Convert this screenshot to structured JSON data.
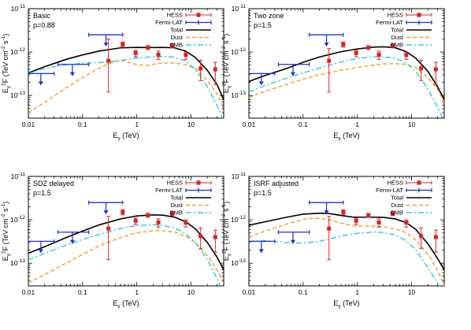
{
  "chart_data": [
    {
      "type": "line",
      "title": "",
      "panel_label": "Basic",
      "param": "p=0.88",
      "xlabel": {
        "base": "E",
        "sub": "γ",
        "rest": " (TeV)"
      },
      "ylabel": {
        "base": "E",
        "sub": "γ",
        "sup": "2",
        "rest1": "F (TeV cm",
        "sup2": "-2",
        "rest2": " s",
        "sup3": "-1",
        "rest3": ")"
      },
      "xscale": "log",
      "yscale": "log",
      "xlim": [
        0.01,
        40
      ],
      "ylim": [
        3e-14,
        1e-11
      ],
      "x_ticks": [
        0.01,
        0.1,
        1,
        10
      ],
      "x_tick_labels": [
        "0.01",
        "0.1",
        "1",
        "10"
      ],
      "y_ticks": [
        1e-13,
        1e-12,
        1e-11
      ],
      "y_tick_labels": [
        {
          "base": "10",
          "exp": "-13"
        },
        {
          "base": "10",
          "exp": "-12"
        },
        {
          "base": "10",
          "exp": "-11"
        }
      ],
      "legend_position": "top-right",
      "legend": [
        "HESS",
        "Fermi-LAT",
        "Total",
        "Dust",
        "CMB"
      ],
      "series": [
        {
          "name": "Total",
          "color": "#000000",
          "style": "solid",
          "x": [
            0.01,
            0.02,
            0.05,
            0.1,
            0.2,
            0.5,
            1,
            2,
            3,
            5,
            8,
            12,
            20,
            30,
            40
          ],
          "y": [
            3.3e-13,
            4.6e-13,
            6.8e-13,
            8.6e-13,
            1.05e-12,
            1.25e-12,
            1.28e-12,
            1.27e-12,
            1.28e-12,
            1.25e-12,
            1.05e-12,
            7.5e-13,
            3.8e-13,
            1.8e-13,
            8e-14
          ]
        },
        {
          "name": "Dust",
          "color": "#f0a020",
          "style": "dashed",
          "x": [
            0.01,
            0.02,
            0.05,
            0.1,
            0.2,
            0.3,
            0.5,
            0.8,
            1,
            1.5,
            2,
            3,
            5,
            8,
            12,
            20,
            30,
            40
          ],
          "y": [
            4e-14,
            7e-14,
            1.5e-13,
            2.6e-13,
            4.2e-13,
            5.4e-13,
            6.5e-13,
            5.6e-13,
            5.1e-13,
            4.9e-13,
            5.2e-13,
            5.6e-13,
            5.6e-13,
            5.1e-13,
            4.2e-13,
            2.2e-13,
            1.1e-13,
            5e-14
          ]
        },
        {
          "name": "CMB",
          "color": "#22cde0",
          "style": "dashdot",
          "x": [
            0.01,
            0.02,
            0.05,
            0.1,
            0.2,
            0.5,
            1,
            2,
            3,
            5,
            8,
            12,
            20,
            30,
            40
          ],
          "y": [
            3.2e-13,
            4.2e-13,
            5.1e-13,
            5.5e-13,
            5.7e-13,
            6.4e-13,
            7.3e-13,
            7.8e-13,
            7.9e-13,
            7.6e-13,
            6.2e-13,
            4e-13,
            1.6e-13,
            6e-14,
            2.5e-14
          ]
        }
      ],
      "hess_points": [
        {
          "x": 0.3,
          "y": 6.3e-13,
          "ylo": 1.2e-13,
          "yhi": 2e-12
        },
        {
          "x": 0.55,
          "y": 1.5e-12,
          "ylo": 1.3e-12,
          "yhi": 1.7e-12
        },
        {
          "x": 0.95,
          "y": 9.5e-13,
          "ylo": 7.8e-13,
          "yhi": 1.1e-12
        },
        {
          "x": 1.6,
          "y": 1.28e-12,
          "ylo": 1.15e-12,
          "yhi": 1.4e-12
        },
        {
          "x": 2.5,
          "y": 8.7e-13,
          "ylo": 6.8e-13,
          "yhi": 1.05e-12
        },
        {
          "x": 4.5,
          "y": 1.4e-12,
          "ylo": 1.25e-12,
          "yhi": 1.55e-12
        },
        {
          "x": 8,
          "y": 8.6e-13,
          "ylo": 6.8e-13,
          "yhi": 1e-12
        },
        {
          "x": 15,
          "y": 4.2e-13,
          "ylo": 2.2e-13,
          "yhi": 6.5e-13
        },
        {
          "x": 28,
          "y": 4e-13,
          "ylo": 1.8e-13,
          "yhi": 5.8e-13
        }
      ],
      "fermi_points": [
        {
          "x": 0.017,
          "xlo": 0.01,
          "xhi": 0.03,
          "y": 3.2e-13,
          "ul": true
        },
        {
          "x": 0.065,
          "xlo": 0.035,
          "xhi": 0.13,
          "y": 5.2e-13,
          "ul": true
        },
        {
          "x": 0.27,
          "xlo": 0.13,
          "xhi": 0.55,
          "y": 2.5e-12,
          "ul": true
        }
      ]
    },
    {
      "type": "line",
      "title": "",
      "panel_label": "Two zone",
      "param": "p=1.5",
      "xlabel": {
        "base": "E",
        "sub": "γ",
        "rest": " (TeV)"
      },
      "ylabel": {
        "base": "E",
        "sub": "γ",
        "sup": "2",
        "rest1": "F (TeV cm",
        "sup2": "-2",
        "rest2": " s",
        "sup3": "-1",
        "rest3": ")"
      },
      "xscale": "log",
      "yscale": "log",
      "xlim": [
        0.01,
        40
      ],
      "ylim": [
        3e-14,
        1e-11
      ],
      "x_ticks": [
        0.01,
        0.1,
        1,
        10
      ],
      "x_tick_labels": [
        "0.01",
        "0.1",
        "1",
        "10"
      ],
      "y_ticks": [
        1e-13,
        1e-12,
        1e-11
      ],
      "y_tick_labels": [
        {
          "base": "10",
          "exp": "-13"
        },
        {
          "base": "10",
          "exp": "-12"
        },
        {
          "base": "10",
          "exp": "-11"
        }
      ],
      "legend_position": "top-right",
      "legend": [
        "HESS",
        "Fermi-LAT",
        "Total",
        "Dust",
        "CMB"
      ],
      "series": [
        {
          "name": "Total",
          "color": "#000000",
          "style": "solid",
          "x": [
            0.01,
            0.02,
            0.05,
            0.1,
            0.2,
            0.5,
            1,
            2,
            3,
            5,
            8,
            12,
            20,
            30,
            40
          ],
          "y": [
            2.1e-13,
            2.9e-13,
            4.2e-13,
            5.8e-13,
            7.7e-13,
            1.02e-12,
            1.18e-12,
            1.3e-12,
            1.32e-12,
            1.26e-12,
            1.02e-12,
            7.2e-13,
            3.6e-13,
            1.6e-13,
            8e-14
          ]
        },
        {
          "name": "Dust",
          "color": "#f0a020",
          "style": "dashed",
          "x": [
            0.01,
            0.02,
            0.05,
            0.1,
            0.2,
            0.5,
            1,
            2,
            3,
            5,
            8,
            12,
            20,
            30,
            40
          ],
          "y": [
            9e-14,
            1.25e-13,
            1.8e-13,
            2.4e-13,
            3e-13,
            3.8e-13,
            4.4e-13,
            5e-13,
            5.3e-13,
            5.4e-13,
            5.2e-13,
            4.4e-13,
            2.6e-13,
            1.4e-13,
            7e-14
          ]
        },
        {
          "name": "CMB",
          "color": "#22cde0",
          "style": "dashdot",
          "x": [
            0.01,
            0.02,
            0.05,
            0.1,
            0.2,
            0.5,
            1,
            2,
            3,
            5,
            8,
            12,
            20,
            30,
            40
          ],
          "y": [
            1.2e-13,
            1.7e-13,
            2.5e-13,
            3.3e-13,
            4.3e-13,
            5.9e-13,
            7.1e-13,
            7.8e-13,
            7.8e-13,
            7.2e-13,
            5.6e-13,
            3.6e-13,
            1.4e-13,
            5.5e-14,
            2.5e-14
          ]
        }
      ],
      "hess_points": [
        {
          "x": 0.3,
          "y": 6.3e-13,
          "ylo": 1.2e-13,
          "yhi": 1.2e-12
        },
        {
          "x": 0.55,
          "y": 1.5e-12,
          "ylo": 1.3e-12,
          "yhi": 1.7e-12
        },
        {
          "x": 0.95,
          "y": 9.5e-13,
          "ylo": 7.8e-13,
          "yhi": 1.1e-12
        },
        {
          "x": 1.6,
          "y": 1.28e-12,
          "ylo": 1.15e-12,
          "yhi": 1.4e-12
        },
        {
          "x": 2.5,
          "y": 8.7e-13,
          "ylo": 6.8e-13,
          "yhi": 1.05e-12
        },
        {
          "x": 4.5,
          "y": 1.4e-12,
          "ylo": 1.25e-12,
          "yhi": 1.55e-12
        },
        {
          "x": 8,
          "y": 8.6e-13,
          "ylo": 6.8e-13,
          "yhi": 1e-12
        },
        {
          "x": 15,
          "y": 4.2e-13,
          "ylo": 2.2e-13,
          "yhi": 6.5e-13
        },
        {
          "x": 28,
          "y": 4e-13,
          "ylo": 1.8e-13,
          "yhi": 5.8e-13
        }
      ],
      "fermi_points": [
        {
          "x": 0.017,
          "xlo": 0.01,
          "xhi": 0.03,
          "y": 3.2e-13,
          "ul": true
        },
        {
          "x": 0.065,
          "xlo": 0.035,
          "xhi": 0.13,
          "y": 5.2e-13,
          "ul": true
        },
        {
          "x": 0.27,
          "xlo": 0.13,
          "xhi": 0.55,
          "y": 2.5e-12,
          "ul": true
        }
      ]
    },
    {
      "type": "line",
      "title": "",
      "panel_label": "SDZ delayed",
      "param": "p=1.5",
      "xlabel": {
        "base": "E",
        "sub": "γ",
        "rest": " (TeV)"
      },
      "ylabel": {
        "base": "E",
        "sub": "γ",
        "sup": "2",
        "rest1": "F (TeV cm",
        "sup2": "-2",
        "rest2": " s",
        "sup3": "-1",
        "rest3": ")"
      },
      "xscale": "log",
      "yscale": "log",
      "xlim": [
        0.01,
        40
      ],
      "ylim": [
        3e-14,
        1e-11
      ],
      "x_ticks": [
        0.01,
        0.1,
        1,
        10
      ],
      "x_tick_labels": [
        "0.01",
        "0.1",
        "1",
        "10"
      ],
      "y_ticks": [
        1e-13,
        1e-12,
        1e-11
      ],
      "y_tick_labels": [
        {
          "base": "10",
          "exp": "-13"
        },
        {
          "base": "10",
          "exp": "-12"
        },
        {
          "base": "10",
          "exp": "-11"
        }
      ],
      "legend_position": "top-right",
      "legend": [
        "HESS",
        "Fermi-LAT",
        "Total",
        "Dust",
        "CMB"
      ],
      "series": [
        {
          "name": "Total",
          "color": "#000000",
          "style": "solid",
          "x": [
            0.01,
            0.02,
            0.05,
            0.1,
            0.2,
            0.5,
            1,
            2,
            3,
            5,
            8,
            12,
            20,
            30,
            40
          ],
          "y": [
            1.7e-13,
            2.4e-13,
            3.9e-13,
            5.5e-13,
            7.6e-13,
            1.05e-12,
            1.23e-12,
            1.3e-12,
            1.28e-12,
            1.15e-12,
            9e-13,
            6.2e-13,
            3e-13,
            1.4e-13,
            7e-14
          ]
        },
        {
          "name": "Dust",
          "color": "#f0a020",
          "style": "dashed",
          "x": [
            0.01,
            0.02,
            0.05,
            0.1,
            0.2,
            0.5,
            1,
            2,
            3,
            5,
            8,
            12,
            20,
            30,
            40
          ],
          "y": [
            3.5e-14,
            5.5e-14,
            1e-13,
            1.6e-13,
            2.5e-13,
            3.9e-13,
            5e-13,
            5.6e-13,
            5.6e-13,
            5.2e-13,
            4.2e-13,
            3e-13,
            1.5e-13,
            7e-14,
            3.5e-14
          ]
        },
        {
          "name": "CMB",
          "color": "#22cde0",
          "style": "dashdot",
          "x": [
            0.01,
            0.02,
            0.05,
            0.1,
            0.2,
            0.5,
            1,
            2,
            3,
            5,
            8,
            12,
            20,
            30,
            40
          ],
          "y": [
            1.2e-13,
            1.7e-13,
            2.6e-13,
            3.5e-13,
            4.6e-13,
            6.3e-13,
            7.4e-13,
            7.7e-13,
            7.4e-13,
            6.5e-13,
            4.8e-13,
            3e-13,
            1.2e-13,
            4.5e-14,
            2e-14
          ]
        }
      ],
      "hess_points": [
        {
          "x": 0.3,
          "y": 6.3e-13,
          "ylo": 1.2e-13,
          "yhi": 1.2e-12
        },
        {
          "x": 0.55,
          "y": 1.5e-12,
          "ylo": 1.3e-12,
          "yhi": 1.7e-12
        },
        {
          "x": 0.95,
          "y": 9.5e-13,
          "ylo": 7.8e-13,
          "yhi": 1.1e-12
        },
        {
          "x": 1.6,
          "y": 1.28e-12,
          "ylo": 1.15e-12,
          "yhi": 1.4e-12
        },
        {
          "x": 2.5,
          "y": 8.7e-13,
          "ylo": 6.8e-13,
          "yhi": 1.05e-12
        },
        {
          "x": 4.5,
          "y": 1.4e-12,
          "ylo": 1.25e-12,
          "yhi": 1.55e-12
        },
        {
          "x": 8,
          "y": 8.6e-13,
          "ylo": 6.8e-13,
          "yhi": 1e-12
        },
        {
          "x": 15,
          "y": 4.2e-13,
          "ylo": 2.2e-13,
          "yhi": 6.5e-13
        },
        {
          "x": 28,
          "y": 4e-13,
          "ylo": 1.8e-13,
          "yhi": 5.8e-13
        }
      ],
      "fermi_points": [
        {
          "x": 0.017,
          "xlo": 0.01,
          "xhi": 0.03,
          "y": 3.2e-13,
          "ul": true
        },
        {
          "x": 0.065,
          "xlo": 0.035,
          "xhi": 0.13,
          "y": 5.2e-13,
          "ul": true
        },
        {
          "x": 0.27,
          "xlo": 0.13,
          "xhi": 0.55,
          "y": 2.5e-12,
          "ul": true
        }
      ]
    },
    {
      "type": "line",
      "title": "",
      "panel_label": "ISRF adjusted",
      "param": "p=1.5",
      "xlabel": {
        "base": "E",
        "sub": "γ",
        "rest": " (TeV)"
      },
      "ylabel": {
        "base": "E",
        "sub": "γ",
        "sup": "2",
        "rest1": "F (TeV cm",
        "sup2": "-2",
        "rest2": " s",
        "sup3": "-1",
        "rest3": ")"
      },
      "xscale": "log",
      "yscale": "log",
      "xlim": [
        0.01,
        40
      ],
      "ylim": [
        3e-14,
        1e-11
      ],
      "x_ticks": [
        0.01,
        0.1,
        1,
        10
      ],
      "x_tick_labels": [
        "0.01",
        "0.1",
        "1",
        "10"
      ],
      "y_ticks": [
        1e-13,
        1e-12,
        1e-11
      ],
      "y_tick_labels": [
        {
          "base": "10",
          "exp": "-13"
        },
        {
          "base": "10",
          "exp": "-12"
        },
        {
          "base": "10",
          "exp": "-11"
        }
      ],
      "legend_position": "top-right",
      "legend": [
        "HESS",
        "Fermi-LAT",
        "Total",
        "Dust",
        "CMB"
      ],
      "series": [
        {
          "name": "Total",
          "color": "#000000",
          "style": "solid",
          "x": [
            0.01,
            0.02,
            0.05,
            0.1,
            0.2,
            0.3,
            0.5,
            0.8,
            1,
            2,
            3,
            5,
            8,
            12,
            20,
            30,
            40
          ],
          "y": [
            7.5e-13,
            9e-13,
            1.15e-12,
            1.35e-12,
            1.42e-12,
            1.4e-12,
            1.26e-12,
            1.16e-12,
            1.15e-12,
            1.15e-12,
            1.14e-12,
            1.05e-12,
            8.6e-13,
            6e-13,
            2.8e-13,
            1.3e-13,
            7e-14
          ]
        },
        {
          "name": "Dust",
          "color": "#f0a020",
          "style": "dashed",
          "x": [
            0.01,
            0.02,
            0.05,
            0.1,
            0.15,
            0.2,
            0.3,
            0.5,
            0.8,
            1,
            2,
            3,
            5,
            8,
            12,
            20,
            30,
            40
          ],
          "y": [
            4e-13,
            5.5e-13,
            8e-13,
            1.02e-12,
            1.08e-12,
            1.08e-12,
            1e-12,
            8.4e-13,
            7.4e-13,
            7.2e-13,
            7.1e-13,
            6.9e-13,
            6.2e-13,
            5e-13,
            3.4e-13,
            1.6e-13,
            7e-14,
            3e-14
          ]
        },
        {
          "name": "CMB",
          "color": "#22cde0",
          "style": "dashdot",
          "x": [
            0.01,
            0.02,
            0.05,
            0.1,
            0.2,
            0.3,
            0.5,
            0.8,
            1,
            2,
            3,
            5,
            8,
            12,
            20,
            30,
            40
          ],
          "y": [
            3.2e-13,
            3.3e-13,
            3e-13,
            2.9e-13,
            3.2e-13,
            3.6e-13,
            4.2e-13,
            4.7e-13,
            4.9e-13,
            5.2e-13,
            5.1e-13,
            4.5e-13,
            3.3e-13,
            2e-13,
            8e-14,
            3.5e-14,
            1.5e-14
          ]
        }
      ],
      "hess_points": [
        {
          "x": 0.3,
          "y": 6.3e-13,
          "ylo": 1.2e-13,
          "yhi": 1.2e-12
        },
        {
          "x": 0.55,
          "y": 1.5e-12,
          "ylo": 1.3e-12,
          "yhi": 1.7e-12
        },
        {
          "x": 0.95,
          "y": 9.5e-13,
          "ylo": 7.8e-13,
          "yhi": 1.1e-12
        },
        {
          "x": 1.6,
          "y": 1.28e-12,
          "ylo": 1.15e-12,
          "yhi": 1.4e-12
        },
        {
          "x": 2.5,
          "y": 8.7e-13,
          "ylo": 6.8e-13,
          "yhi": 1.05e-12
        },
        {
          "x": 4.5,
          "y": 1.4e-12,
          "ylo": 1.25e-12,
          "yhi": 1.55e-12
        },
        {
          "x": 8,
          "y": 8.6e-13,
          "ylo": 6.8e-13,
          "yhi": 1e-12
        },
        {
          "x": 15,
          "y": 4.2e-13,
          "ylo": 2.2e-13,
          "yhi": 6.5e-13
        },
        {
          "x": 28,
          "y": 4e-13,
          "ylo": 1.8e-13,
          "yhi": 5.8e-13
        }
      ],
      "fermi_points": [
        {
          "x": 0.017,
          "xlo": 0.01,
          "xhi": 0.03,
          "y": 3.2e-13,
          "ul": true
        },
        {
          "x": 0.065,
          "xlo": 0.035,
          "xhi": 0.13,
          "y": 5.2e-13,
          "ul": true
        },
        {
          "x": 0.27,
          "xlo": 0.13,
          "xhi": 0.55,
          "y": 2.5e-12,
          "ul": true
        }
      ]
    }
  ],
  "colors": {
    "hess": "#e02020",
    "fermi": "#1a2fd8"
  }
}
